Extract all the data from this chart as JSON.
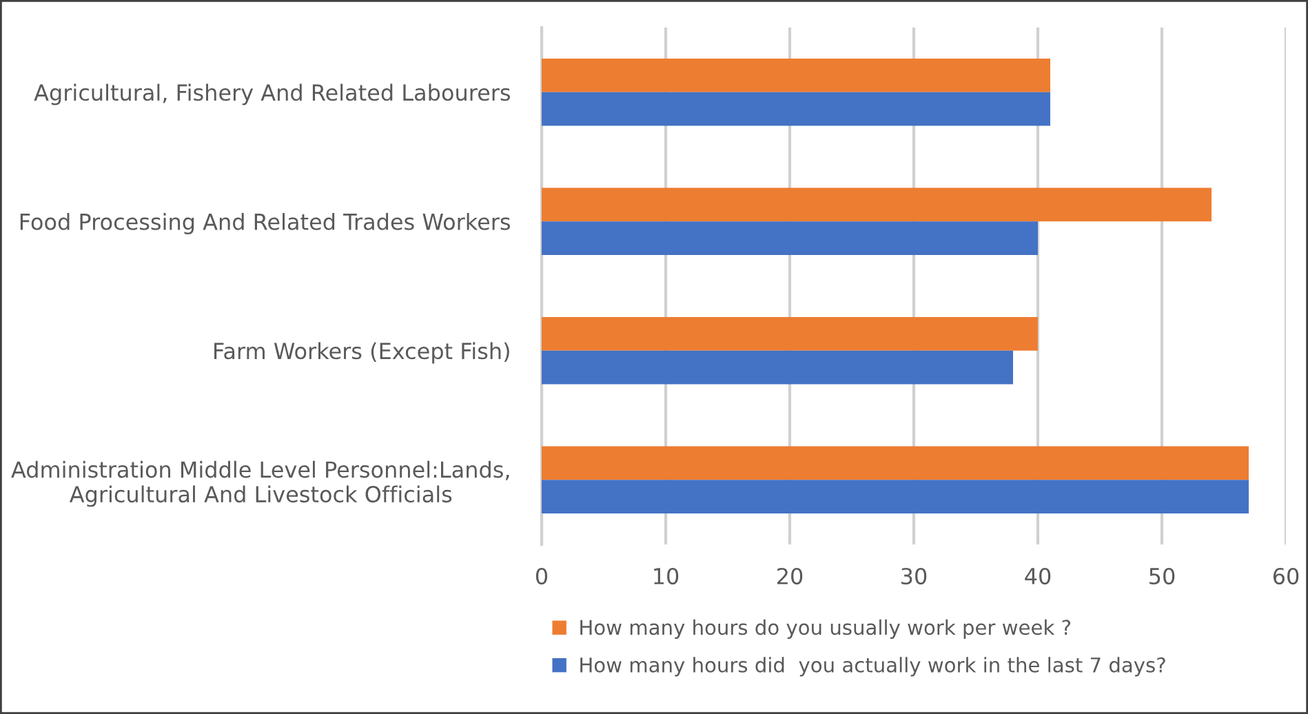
{
  "chart_data": {
    "type": "bar",
    "orientation": "horizontal",
    "categories": [
      "Agricultural, Fishery And Related Labourers",
      "Food Processing And Related Trades Workers",
      "Farm Workers (Except Fish)",
      "Administration Middle Level Personnel:Lands,\nAgricultural And Livestock Officials"
    ],
    "series": [
      {
        "name": "How many hours do you usually work per week ?",
        "color": "#ed7d31",
        "values": [
          41,
          54,
          40,
          57
        ]
      },
      {
        "name": "How many hours did  you actually work in the last 7 days?",
        "color": "#4472c4",
        "values": [
          41,
          40,
          38,
          57
        ]
      }
    ],
    "xlim": [
      0,
      60
    ],
    "xticks": [
      0,
      10,
      20,
      30,
      40,
      50,
      60
    ],
    "grid": "x",
    "legend": "bottom"
  }
}
